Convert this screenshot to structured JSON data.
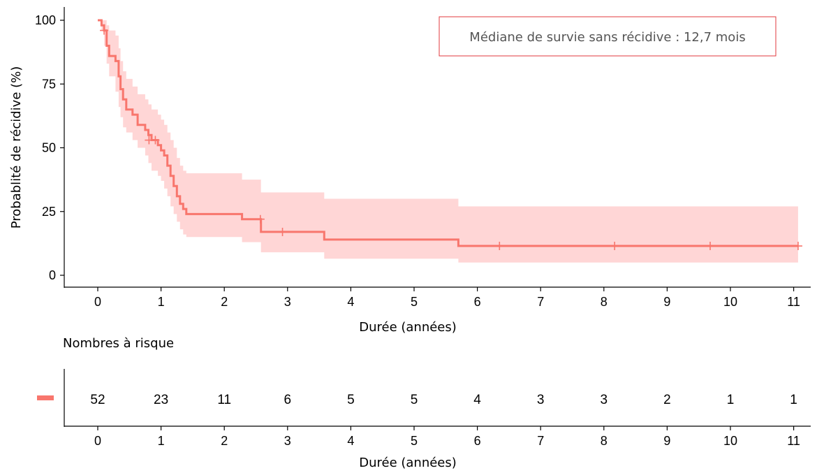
{
  "chart_data": [
    {
      "type": "line",
      "subtype": "kaplan-meier",
      "title": "",
      "xlabel": "Durée (années)",
      "ylabel": "Probablité de récidive (%)",
      "xlim": [
        0,
        11
      ],
      "ylim": [
        0,
        100
      ],
      "x_ticks": [
        "0",
        "1",
        "2",
        "3",
        "4",
        "5",
        "6",
        "7",
        "8",
        "9",
        "10",
        "11"
      ],
      "y_ticks": [
        "0",
        "25",
        "50",
        "75",
        "100"
      ],
      "grid": false,
      "annotation": "Médiane de survie sans récidive : 12,7 mois",
      "colors": {
        "line": "#F8766D",
        "band": "#FFD6D6"
      },
      "series": [
        {
          "name": "",
          "color": "#F8766D",
          "step_times": [
            0,
            0.06,
            0.1,
            0.14,
            0.18,
            0.28,
            0.33,
            0.36,
            0.4,
            0.45,
            0.55,
            0.63,
            0.75,
            0.8,
            0.85,
            0.95,
            1.0,
            1.05,
            1.1,
            1.15,
            1.2,
            1.25,
            1.3,
            1.35,
            1.4,
            1.45,
            1.5,
            2.28,
            2.58,
            3.58,
            5.7,
            11.07
          ],
          "survival": [
            100,
            98,
            96,
            90,
            86,
            84,
            78,
            73,
            69,
            65,
            63,
            59,
            57,
            55,
            53,
            51,
            49,
            47,
            43,
            39,
            35,
            31,
            28,
            26,
            24,
            24,
            24,
            22,
            17,
            14,
            11.5,
            11.5
          ],
          "lower_ci": [
            100,
            96,
            90,
            83,
            78,
            72,
            66,
            62,
            58,
            56,
            53,
            50,
            47,
            44,
            41,
            39,
            37,
            34,
            31,
            27,
            24,
            21,
            18,
            16,
            15,
            15,
            15,
            13,
            9,
            6.5,
            5,
            5
          ],
          "upper_ci": [
            100,
            100,
            100,
            98,
            96,
            94,
            89,
            84,
            80,
            77,
            74,
            71,
            69,
            67,
            65,
            63,
            61,
            59,
            56,
            53,
            50,
            46,
            43,
            41,
            40,
            40,
            40,
            37.5,
            32.5,
            30,
            27,
            27
          ],
          "censor_times": [
            0.1,
            0.81,
            0.91,
            2.57,
            2.92,
            6.35,
            8.17,
            9.68,
            11.07
          ],
          "censor_values": [
            96,
            53,
            53,
            22,
            17,
            11.5,
            11.5,
            11.5,
            11.5
          ]
        }
      ]
    },
    {
      "type": "table",
      "title": "Nombres à risque",
      "xlabel": "Durée (années)",
      "x_ticks": [
        "0",
        "1",
        "2",
        "3",
        "4",
        "5",
        "6",
        "7",
        "8",
        "9",
        "10",
        "11"
      ],
      "values": [
        52,
        23,
        11,
        6,
        5,
        5,
        4,
        3,
        3,
        2,
        1,
        1
      ],
      "legend_color": "#F8766D"
    }
  ]
}
